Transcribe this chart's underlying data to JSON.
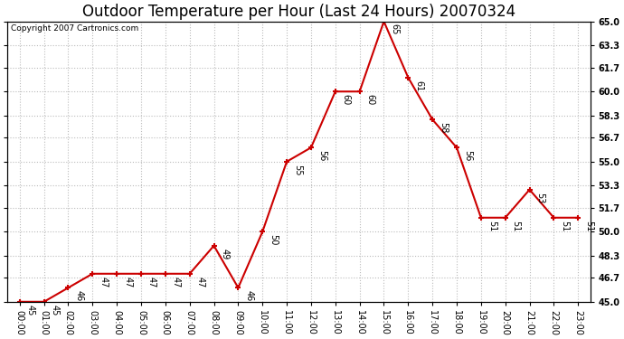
{
  "title": "Outdoor Temperature per Hour (Last 24 Hours) 20070324",
  "copyright_text": "Copyright 2007 Cartronics.com",
  "hours": [
    "00:00",
    "01:00",
    "02:00",
    "03:00",
    "04:00",
    "05:00",
    "06:00",
    "07:00",
    "08:00",
    "09:00",
    "10:00",
    "11:00",
    "12:00",
    "13:00",
    "14:00",
    "15:00",
    "16:00",
    "17:00",
    "18:00",
    "19:00",
    "20:00",
    "21:00",
    "22:00",
    "23:00"
  ],
  "temps": [
    45,
    45,
    46,
    47,
    47,
    47,
    47,
    47,
    49,
    46,
    50,
    55,
    56,
    60,
    60,
    65,
    61,
    58,
    56,
    51,
    51,
    53,
    51,
    51
  ],
  "ylim": [
    45.0,
    65.0
  ],
  "yticks": [
    45.0,
    46.7,
    48.3,
    50.0,
    51.7,
    53.3,
    55.0,
    56.7,
    58.3,
    60.0,
    61.7,
    63.3,
    65.0
  ],
  "line_color": "#cc0000",
  "marker_color": "#cc0000",
  "bg_color": "#ffffff",
  "grid_color": "#bbbbbb",
  "title_fontsize": 12,
  "tick_fontsize": 7,
  "annotation_fontsize": 7,
  "copyright_fontsize": 6.5
}
